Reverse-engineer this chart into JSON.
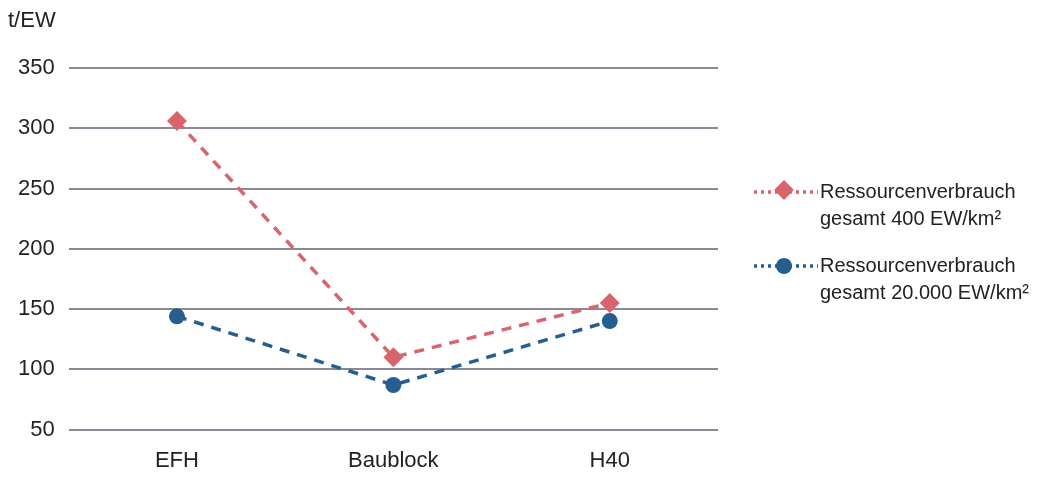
{
  "chart_data": {
    "type": "line",
    "ylabel": "t/EW",
    "categories": [
      "EFH",
      "Baublock",
      "H40"
    ],
    "series": [
      {
        "name": "Ressourcenverbrauch gesamt 400 EW/km²",
        "color": "#d9646c",
        "marker": "diamond",
        "values": [
          306,
          110,
          155
        ]
      },
      {
        "name": "Ressourcenverbrauch gesamt 20.000 EW/km²",
        "color": "#265f8e",
        "marker": "circle",
        "values": [
          144,
          87,
          140
        ]
      }
    ],
    "ylim": [
      50,
      350
    ],
    "yticks": [
      50,
      100,
      150,
      200,
      250,
      300,
      350
    ],
    "grid": "y",
    "legend": "right",
    "line_style": "dashed"
  }
}
